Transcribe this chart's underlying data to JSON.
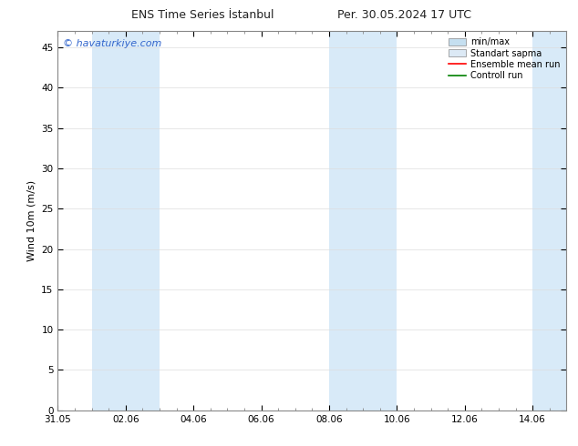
{
  "title_left": "ENS Time Series İstanbul",
  "title_right": "Per. 30.05.2024 17 UTC",
  "ylabel": "Wind 10m (m/s)",
  "watermark": "© havaturkiye.com",
  "watermark_color": "#3366cc",
  "ylim": [
    0,
    47
  ],
  "yticks": [
    0,
    5,
    10,
    15,
    20,
    25,
    30,
    35,
    40,
    45
  ],
  "xlim": [
    0,
    15
  ],
  "xtick_labels": [
    "31.05",
    "02.06",
    "04.06",
    "06.06",
    "08.06",
    "10.06",
    "12.06",
    "14.06"
  ],
  "xtick_positions": [
    0,
    2,
    4,
    6,
    8,
    10,
    12,
    14
  ],
  "shaded_bands": [
    {
      "x_start": 1.0,
      "x_end": 3.0,
      "color": "#d8eaf8"
    },
    {
      "x_start": 8.0,
      "x_end": 10.0,
      "color": "#d8eaf8"
    },
    {
      "x_start": 14.0,
      "x_end": 15.0,
      "color": "#d8eaf8"
    }
  ],
  "legend_entries": [
    {
      "label": "min/max",
      "color": "#c5dff0",
      "type": "errorbar"
    },
    {
      "label": "Standart sapma",
      "color": "#dce9f5",
      "type": "bar"
    },
    {
      "label": "Ensemble mean run",
      "color": "#ff0000",
      "type": "line"
    },
    {
      "label": "Controll run",
      "color": "#008000",
      "type": "line"
    }
  ],
  "background_color": "#ffffff",
  "plot_bg_color": "#ffffff",
  "grid_color": "#dddddd",
  "title_fontsize": 9,
  "axis_label_fontsize": 8,
  "tick_fontsize": 7.5,
  "watermark_fontsize": 8,
  "legend_fontsize": 7
}
